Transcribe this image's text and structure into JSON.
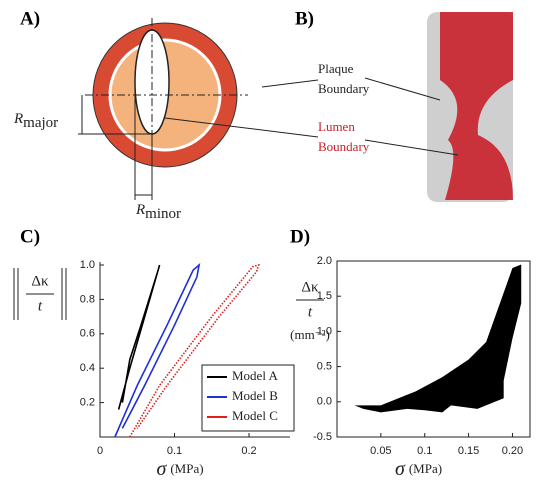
{
  "panel_a": {
    "label": "A)",
    "r_major": {
      "symbol": "R",
      "subscript": "major"
    },
    "r_minor": {
      "symbol": "R",
      "subscript": "minor"
    }
  },
  "panel_b": {
    "label": "B)",
    "plaque": [
      "Plaque",
      "Boundary"
    ],
    "lumen": [
      "Lumen",
      "Boundary"
    ]
  },
  "chart_data": [
    {
      "type": "line",
      "label": "C)",
      "ylabel_numerator": "Δκ",
      "ylabel_denominator": "t",
      "xlabel": "σ",
      "xlabel_unit": "(MPa)",
      "xlim": [
        0,
        0.255
      ],
      "xticks": [
        0,
        0.1,
        0.2
      ],
      "ylim": [
        0,
        1.0
      ],
      "yticks": [
        0.2,
        0.4,
        0.6,
        0.8,
        {
          "value": 1.0,
          "label": "1.0"
        }
      ],
      "legend": "lower right",
      "box": false,
      "series": [
        {
          "name": "Model A",
          "color": "#000000",
          "style": "solid",
          "x": [
            0.025,
            0.04,
            0.06,
            0.08,
            0.078,
            0.055,
            0.04,
            0.03
          ],
          "values": [
            0.16,
            0.4,
            0.7,
            1.0,
            0.97,
            0.65,
            0.45,
            0.2
          ]
        },
        {
          "name": "Model B",
          "color": "#1f2fd6",
          "style": "solid",
          "x": [
            0.02,
            0.05,
            0.09,
            0.125,
            0.133,
            0.13,
            0.1,
            0.06,
            0.03
          ],
          "values": [
            0,
            0.3,
            0.65,
            0.97,
            1.0,
            0.93,
            0.65,
            0.3,
            0.05
          ]
        },
        {
          "name": "Model C",
          "color": "#e01e1e",
          "style": "dotted",
          "x": [
            0.04,
            0.08,
            0.15,
            0.205,
            0.213,
            0.21,
            0.16,
            0.09,
            0.05
          ],
          "values": [
            0,
            0.3,
            0.7,
            0.99,
            1.0,
            0.96,
            0.7,
            0.3,
            0.05
          ]
        }
      ]
    },
    {
      "type": "area",
      "label": "D)",
      "ylabel_numerator": "Δκ",
      "ylabel_denominator": "t",
      "ylabel_unit": "(mm⁻²)",
      "xlabel": "σ",
      "xlabel_unit": "(MPa)",
      "xlim": [
        0,
        0.22
      ],
      "xticks": [
        {
          "value": 0.05,
          "label": "0.05"
        },
        0.1,
        0.15,
        {
          "value": 0.2,
          "label": "0.20"
        }
      ],
      "ylim": [
        -0.5,
        2.0
      ],
      "yticks": [
        -0.5,
        {
          "value": 0,
          "label": "0.0"
        },
        0.5,
        {
          "value": 1.0,
          "label": "1.0"
        },
        1.5,
        {
          "value": 2.0,
          "label": "2.0"
        }
      ],
      "box": true,
      "series": [
        {
          "color": "#000000",
          "x": [
            0.02,
            0.05,
            0.09,
            0.12,
            0.15,
            0.17,
            0.2,
            0.21,
            0.21,
            0.2,
            0.19,
            0.19,
            0.16,
            0.13,
            0.12,
            0.1,
            0.08,
            0.05,
            0.03
          ],
          "values": [
            -0.05,
            -0.05,
            0.15,
            0.35,
            0.6,
            0.85,
            1.9,
            1.95,
            1.4,
            0.9,
            0.3,
            0.05,
            -0.1,
            -0.05,
            -0.15,
            -0.12,
            -0.1,
            -0.15,
            -0.1
          ]
        }
      ]
    }
  ]
}
